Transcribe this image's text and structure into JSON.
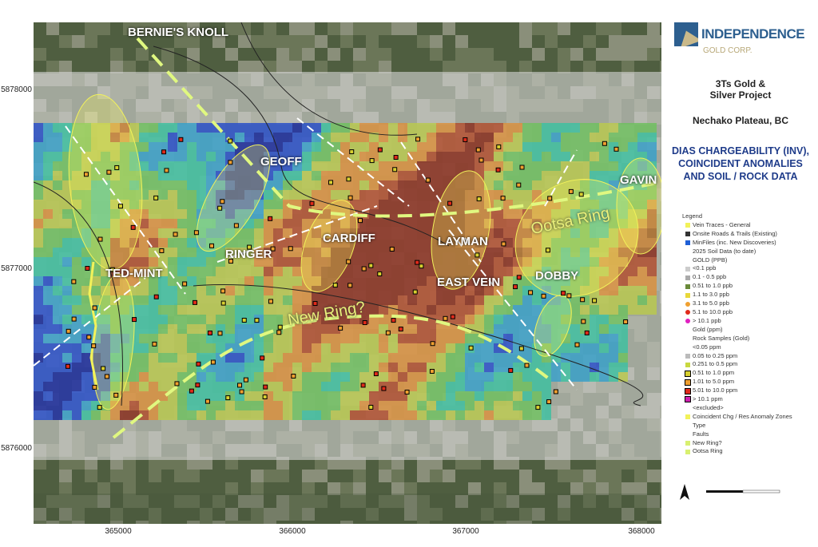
{
  "map": {
    "labels": {
      "bernies_knoll": "BERNIE'S KNOLL",
      "geoff": "GEOFF",
      "cardiff": "CARDIFF",
      "layman": "LAYMAN",
      "ringer": "RINGER",
      "ted_mint": "TED-MINT",
      "east_vein": "EAST VEIN",
      "dobby": "DOBBY",
      "gavin": "GAVIN",
      "ootsa_ring": "Ootsa Ring",
      "new_ring": "New Ring?"
    },
    "y_ticks": [
      "5878000",
      "5877000",
      "5876000"
    ],
    "x_ticks": [
      "365000",
      "366000",
      "367000",
      "368000"
    ]
  },
  "side": {
    "logo_name": "INDEPENDENCE",
    "logo_sub": "GOLD CORP.",
    "project": "3Ts Gold & Silver Project",
    "location": "Nechako Plateau, BC",
    "map_title": [
      "DIAS CHARGEABILITY (INV),",
      "COINCIDENT ANOMALIES",
      "AND SOIL /  ROCK DATA"
    ]
  },
  "legend": {
    "title": "Legend",
    "items": [
      {
        "label": "Vein Traces - General",
        "color": "#f2f25a"
      },
      {
        "label": "Onsite Roads & Trails (Existing)",
        "color": "#333333"
      },
      {
        "label": "MinFiles (inc. New Discoveries)",
        "color": "#1f5fd6"
      },
      {
        "label": "2025 Soil Data (to date)"
      },
      {
        "label": "GOLD (PPB)"
      },
      {
        "label": "<0.1 ppb",
        "color": "#cccccc"
      },
      {
        "label": "0.1 - 0.5 ppb",
        "color": "#aaaaaa"
      },
      {
        "label": "0.51 to 1.0 ppb",
        "color": "#6a8a3a"
      },
      {
        "label": "1.1 to 3.0 ppb",
        "color": "#e8d83a"
      },
      {
        "label": "3.1 to 5.0 ppb",
        "color": "#f0a030"
      },
      {
        "label": "5.1 to 10.0 ppb",
        "color": "#e02a1a"
      },
      {
        "label": "> 10.1 ppb",
        "color": "#e020c0"
      },
      {
        "label": "Gold (ppm)"
      },
      {
        "label": "Rock Samples (Gold)"
      },
      {
        "label": "<0.05 ppm"
      },
      {
        "label": "0.05 to 0.25 ppm",
        "color": "#bbbbbb"
      },
      {
        "label": "0.251 to 0.5 ppm",
        "color": "#c8d840"
      },
      {
        "label": "0.51 to 1.0 ppm",
        "color": "#d8d030"
      },
      {
        "label": "1.01 to 5.0 ppm",
        "color": "#f0a030"
      },
      {
        "label": "5.01 to 10.0 ppm",
        "color": "#e02a1a"
      },
      {
        "label": "> 10.1 ppm",
        "color": "#d020b0"
      },
      {
        "label": "<excluded>"
      },
      {
        "label": "Coincident Chg / Res Anomaly Zones",
        "color": "#f2f25a"
      },
      {
        "label": "Type"
      },
      {
        "label": "Faults"
      },
      {
        "label": "New Ring?",
        "color": "#d8f070"
      },
      {
        "label": "Ootsa Ring",
        "color": "#d8f070"
      }
    ]
  }
}
